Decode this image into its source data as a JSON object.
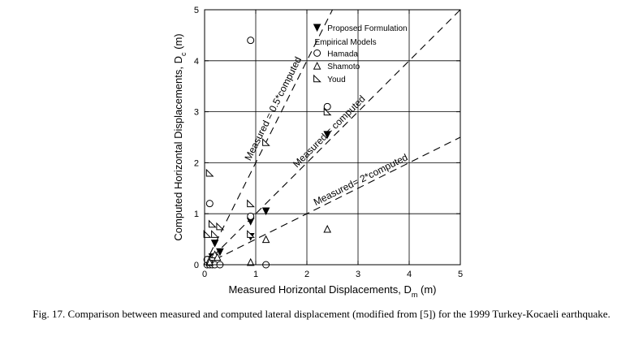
{
  "chart_data": {
    "type": "scatter",
    "xlabel": "Measured Horizontal Displacements, D",
    "xlabel_sub": "m",
    "xlabel_unit": "(m)",
    "ylabel": "Computed Horizontal Displacements, D",
    "ylabel_sub": "c",
    "ylabel_unit": "(m)",
    "xlim": [
      0,
      5
    ],
    "ylim": [
      0,
      5
    ],
    "xticks": [
      "0",
      "1",
      "2",
      "3",
      "4",
      "5"
    ],
    "yticks": [
      "0",
      "1",
      "2",
      "3",
      "4",
      "5"
    ],
    "grid": true,
    "legend_placement": "top-center",
    "legend_heading": "Empirical Models",
    "reference_lines": [
      {
        "label": "Measured = 0.5*computed",
        "slope": 2
      },
      {
        "label": "Measured = computed",
        "slope": 1
      },
      {
        "label": "Measured= 2*computed",
        "slope": 0.5
      }
    ],
    "series": [
      {
        "name": "Proposed Formulation",
        "marker": "filled-down-triangle",
        "x": [
          0.1,
          0.15,
          0.2,
          0.3,
          0.9,
          0.9,
          1.2,
          2.4
        ],
        "y": [
          0.1,
          0.15,
          0.42,
          0.25,
          0.85,
          0.55,
          1.05,
          2.55
        ]
      },
      {
        "name": "Hamada",
        "marker": "open-circle",
        "x": [
          0.05,
          0.1,
          0.15,
          0.2,
          0.3,
          0.9,
          0.9,
          1.2,
          2.4,
          0.1,
          0.05
        ],
        "y": [
          0.0,
          0.0,
          0.0,
          0.0,
          0.0,
          4.4,
          0.95,
          0.0,
          3.1,
          1.2,
          0.1
        ]
      },
      {
        "name": "Shamoto",
        "marker": "open-up-triangle",
        "x": [
          0.1,
          0.15,
          0.2,
          0.25,
          0.9,
          1.2,
          2.4,
          0.1
        ],
        "y": [
          0.1,
          0.15,
          0.2,
          0.15,
          0.05,
          0.5,
          0.7,
          0.05
        ]
      },
      {
        "name": "Youd",
        "marker": "open-slanted-triangle",
        "x": [
          0.1,
          0.15,
          0.2,
          0.3,
          0.9,
          0.9,
          1.2,
          2.4,
          0.05
        ],
        "y": [
          1.8,
          0.8,
          0.6,
          0.75,
          1.2,
          0.6,
          2.4,
          3.0,
          0.6
        ]
      }
    ]
  },
  "caption": "Fig. 17. Comparison between measured and computed lateral displacement (modified from [5]) for the 1999 Turkey-Kocaeli earthquake."
}
